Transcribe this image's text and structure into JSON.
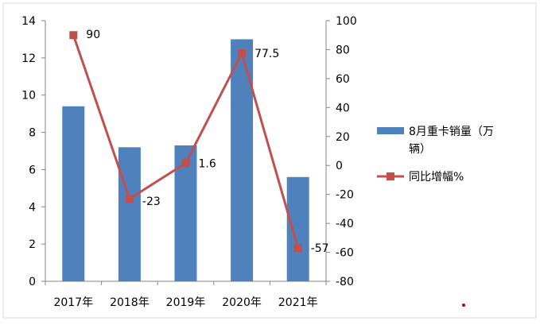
{
  "chart_data": {
    "type": "bar+line",
    "categories": [
      "2017年",
      "2018年",
      "2019年",
      "2020年",
      "2021年"
    ],
    "series": [
      {
        "name": "8月重卡销量（万辆）",
        "legend_lines": [
          "8月重卡销量（万",
          "辆）"
        ],
        "type": "bar",
        "axis": "left",
        "color": "#4f81bd",
        "values": [
          9.4,
          7.2,
          7.3,
          13.0,
          5.6
        ]
      },
      {
        "name": "同比增幅%",
        "type": "line",
        "axis": "right",
        "color": "#c0504d",
        "values": [
          90,
          -23,
          1.6,
          77.5,
          -57
        ],
        "data_labels": [
          "90",
          "-23",
          "1.6",
          "77.5",
          "-57"
        ]
      }
    ],
    "y_left": {
      "min": 0,
      "max": 14,
      "ticks": [
        "0",
        "2",
        "4",
        "6",
        "8",
        "10",
        "12",
        "14"
      ]
    },
    "y_right": {
      "min": -80,
      "max": 100,
      "ticks": [
        "-80",
        "-60",
        "-40",
        "-20",
        "0",
        "20",
        "40",
        "60",
        "80",
        "100"
      ]
    },
    "legend_position": "right",
    "grid": false
  }
}
